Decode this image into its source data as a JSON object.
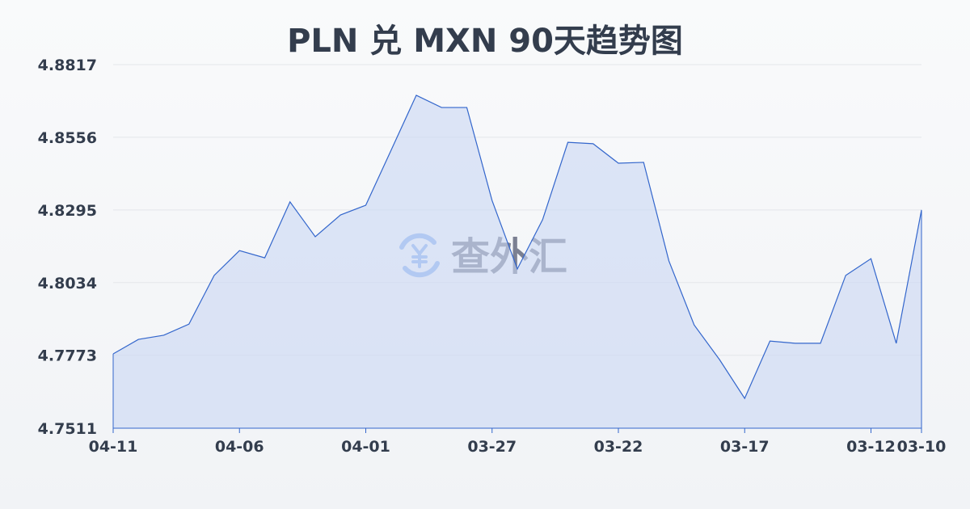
{
  "chart_data": {
    "type": "area",
    "title": "PLN 兑 MXN 90天趋势图",
    "xlabel": "",
    "ylabel": "",
    "x": [
      "04-11",
      "04-10",
      "04-09",
      "04-08",
      "04-07",
      "04-06",
      "04-05",
      "04-04",
      "04-03",
      "04-02",
      "04-01",
      "03-31",
      "03-30",
      "03-29",
      "03-28",
      "03-27",
      "03-26",
      "03-25",
      "03-24",
      "03-23",
      "03-22",
      "03-21",
      "03-20",
      "03-19",
      "03-18",
      "03-17",
      "03-16",
      "03-15",
      "03-14",
      "03-13",
      "03-12",
      "03-11",
      "03-10"
    ],
    "values": [
      4.7778,
      4.783,
      4.7845,
      4.7885,
      4.806,
      4.8149,
      4.8123,
      4.8324,
      4.8199,
      4.8277,
      4.8312,
      4.8509,
      4.8707,
      4.8663,
      4.8663,
      4.8329,
      4.8083,
      4.826,
      4.8538,
      4.8533,
      4.8463,
      4.8466,
      4.8112,
      4.7882,
      4.7758,
      4.7618,
      4.7824,
      4.7816,
      4.7816,
      4.806,
      4.812,
      4.7816,
      4.8295
    ],
    "ylim": [
      4.7511,
      4.8817
    ],
    "yticks": [
      "4.7511",
      "4.7773",
      "4.8034",
      "4.8295",
      "4.8556",
      "4.8817"
    ],
    "xticks": [
      "04-11",
      "04-06",
      "04-01",
      "03-27",
      "03-22",
      "03-17",
      "03-12",
      "03-10"
    ],
    "grid": true,
    "colors": {
      "line": "#3366cc",
      "fill": "#c9d7f3",
      "grid": "#e3e6ea",
      "text": "#333d4d"
    }
  },
  "watermark": {
    "text": "查外汇",
    "icon": "yen-exchange-icon"
  }
}
